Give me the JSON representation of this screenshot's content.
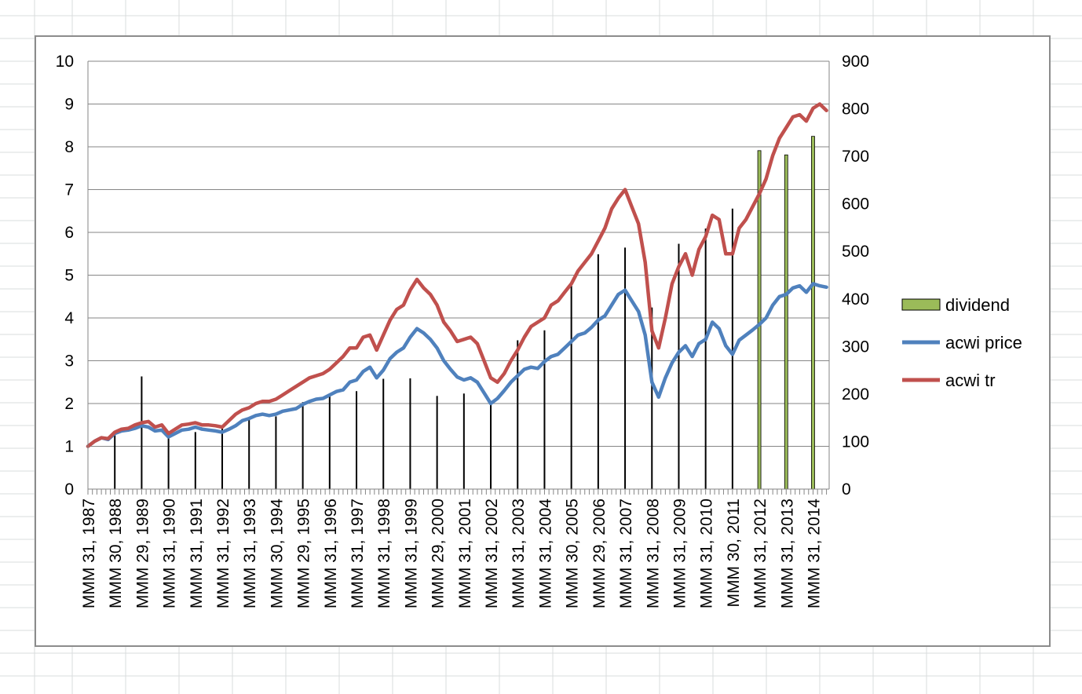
{
  "chart_data": {
    "type": "line",
    "x_categories": [
      "MMM 31, 1987",
      "MMM 30, 1988",
      "MMM 29, 1989",
      "MMM 31, 1990",
      "MMM 31, 1991",
      "MMM 31, 1992",
      "MMM 31, 1993",
      "MMM 30, 1994",
      "MMM 29, 1995",
      "MMM 31, 1996",
      "MMM 31, 1997",
      "MMM 31, 1998",
      "MMM 31, 1999",
      "MMM 29, 2000",
      "MMM 31, 2001",
      "MMM 31, 2002",
      "MMM 31, 2003",
      "MMM 31, 2004",
      "MMM 30, 2005",
      "MMM 29, 2006",
      "MMM 31, 2007",
      "MMM 31, 2008",
      "MMM 31, 2009",
      "MMM 31, 2010",
      "MMM 30, 2011",
      "MMM 31, 2012",
      "MMM 31, 2013",
      "MMM 31, 2014"
    ],
    "y_left": {
      "ylim": [
        0,
        10
      ],
      "ticks": [
        "0",
        "1",
        "2",
        "3",
        "4",
        "5",
        "6",
        "7",
        "8",
        "9",
        "10"
      ]
    },
    "y_right": {
      "ylim": [
        0,
        900
      ],
      "ticks": [
        "0",
        "100",
        "200",
        "300",
        "400",
        "500",
        "600",
        "700",
        "800",
        "900"
      ]
    },
    "grid": true,
    "legend_position": "right",
    "series": [
      {
        "name": "dividend",
        "kind": "bar",
        "axis": "right",
        "color": "#9bbb59",
        "x": [
          1988.0,
          1989.0,
          1990.0,
          1991.0,
          1992.0,
          1993.0,
          1994.0,
          1995.0,
          1996.0,
          1997.0,
          1998.0,
          1999.0,
          2000.0,
          2001.0,
          2002.0,
          2003.0,
          2004.0,
          2005.0,
          2006.0,
          2007.0,
          2008.0,
          2009.0,
          2010.0,
          2011.0,
          2012.0,
          2013.0,
          2014.0
        ],
        "values": [
          115,
          237,
          118,
          120,
          127,
          150,
          153,
          183,
          199,
          206,
          232,
          233,
          196,
          201,
          181,
          313,
          334,
          428,
          494,
          508,
          382,
          516,
          548,
          590,
          712,
          703,
          742
        ]
      },
      {
        "name": "acwi price",
        "kind": "line",
        "axis": "left",
        "color": "#4f81bd",
        "x": [
          1987.0,
          1987.25,
          1987.5,
          1987.75,
          1988.0,
          1988.25,
          1988.5,
          1988.75,
          1989.0,
          1989.25,
          1989.5,
          1989.75,
          1990.0,
          1990.25,
          1990.5,
          1990.75,
          1991.0,
          1991.25,
          1991.5,
          1991.75,
          1992.0,
          1992.25,
          1992.5,
          1992.75,
          1993.0,
          1993.25,
          1993.5,
          1993.75,
          1994.0,
          1994.25,
          1994.5,
          1994.75,
          1995.0,
          1995.25,
          1995.5,
          1995.75,
          1996.0,
          1996.25,
          1996.5,
          1996.75,
          1997.0,
          1997.25,
          1997.5,
          1997.75,
          1998.0,
          1998.25,
          1998.5,
          1998.75,
          1999.0,
          1999.25,
          1999.5,
          1999.75,
          2000.0,
          2000.25,
          2000.5,
          2000.75,
          2001.0,
          2001.25,
          2001.5,
          2001.75,
          2002.0,
          2002.25,
          2002.5,
          2002.75,
          2003.0,
          2003.25,
          2003.5,
          2003.75,
          2004.0,
          2004.25,
          2004.5,
          2004.75,
          2005.0,
          2005.25,
          2005.5,
          2005.75,
          2006.0,
          2006.25,
          2006.5,
          2006.75,
          2007.0,
          2007.25,
          2007.5,
          2007.75,
          2008.0,
          2008.25,
          2008.5,
          2008.75,
          2009.0,
          2009.25,
          2009.5,
          2009.75,
          2010.0,
          2010.25,
          2010.5,
          2010.75,
          2011.0,
          2011.25,
          2011.5,
          2011.75,
          2012.0,
          2012.25,
          2012.5,
          2012.75,
          2013.0,
          2013.25,
          2013.5,
          2013.75,
          2014.0,
          2014.25,
          2014.5
        ],
        "values": [
          1.0,
          1.12,
          1.2,
          1.16,
          1.3,
          1.36,
          1.38,
          1.42,
          1.48,
          1.45,
          1.36,
          1.38,
          1.22,
          1.3,
          1.38,
          1.4,
          1.45,
          1.4,
          1.38,
          1.36,
          1.33,
          1.4,
          1.48,
          1.6,
          1.65,
          1.72,
          1.75,
          1.72,
          1.75,
          1.82,
          1.85,
          1.88,
          1.98,
          2.05,
          2.1,
          2.12,
          2.2,
          2.28,
          2.32,
          2.5,
          2.55,
          2.75,
          2.85,
          2.6,
          2.78,
          3.05,
          3.2,
          3.3,
          3.55,
          3.75,
          3.65,
          3.5,
          3.3,
          3.0,
          2.8,
          2.62,
          2.55,
          2.6,
          2.5,
          2.25,
          2.0,
          2.12,
          2.3,
          2.5,
          2.65,
          2.8,
          2.85,
          2.82,
          2.98,
          3.1,
          3.15,
          3.3,
          3.45,
          3.6,
          3.65,
          3.78,
          3.95,
          4.05,
          4.3,
          4.55,
          4.65,
          4.4,
          4.15,
          3.6,
          2.5,
          2.15,
          2.6,
          2.95,
          3.2,
          3.35,
          3.1,
          3.4,
          3.5,
          3.9,
          3.75,
          3.35,
          3.15,
          3.48,
          3.6,
          3.72,
          3.85,
          4.0,
          4.3,
          4.5,
          4.55,
          4.7,
          4.75,
          4.6,
          4.8,
          4.75,
          4.72
        ]
      },
      {
        "name": "acwi tr",
        "kind": "line",
        "axis": "left",
        "color": "#c0504d",
        "x": [
          1987.0,
          1987.25,
          1987.5,
          1987.75,
          1988.0,
          1988.25,
          1988.5,
          1988.75,
          1989.0,
          1989.25,
          1989.5,
          1989.75,
          1990.0,
          1990.25,
          1990.5,
          1990.75,
          1991.0,
          1991.25,
          1991.5,
          1991.75,
          1992.0,
          1992.25,
          1992.5,
          1992.75,
          1993.0,
          1993.25,
          1993.5,
          1993.75,
          1994.0,
          1994.25,
          1994.5,
          1994.75,
          1995.0,
          1995.25,
          1995.5,
          1995.75,
          1996.0,
          1996.25,
          1996.5,
          1996.75,
          1997.0,
          1997.25,
          1997.5,
          1997.75,
          1998.0,
          1998.25,
          1998.5,
          1998.75,
          1999.0,
          1999.25,
          1999.5,
          1999.75,
          2000.0,
          2000.25,
          2000.5,
          2000.75,
          2001.0,
          2001.25,
          2001.5,
          2001.75,
          2002.0,
          2002.25,
          2002.5,
          2002.75,
          2003.0,
          2003.25,
          2003.5,
          2003.75,
          2004.0,
          2004.25,
          2004.5,
          2004.75,
          2005.0,
          2005.25,
          2005.5,
          2005.75,
          2006.0,
          2006.25,
          2006.5,
          2006.75,
          2007.0,
          2007.25,
          2007.5,
          2007.75,
          2008.0,
          2008.25,
          2008.5,
          2008.75,
          2009.0,
          2009.25,
          2009.5,
          2009.75,
          2010.0,
          2010.25,
          2010.5,
          2010.75,
          2011.0,
          2011.25,
          2011.5,
          2011.75,
          2012.0,
          2012.25,
          2012.5,
          2012.75,
          2013.0,
          2013.25,
          2013.5,
          2013.75,
          2014.0,
          2014.25,
          2014.5
        ],
        "values": [
          1.0,
          1.12,
          1.2,
          1.18,
          1.33,
          1.4,
          1.42,
          1.5,
          1.55,
          1.58,
          1.45,
          1.5,
          1.3,
          1.4,
          1.5,
          1.52,
          1.55,
          1.5,
          1.5,
          1.48,
          1.45,
          1.6,
          1.75,
          1.85,
          1.9,
          2.0,
          2.05,
          2.05,
          2.1,
          2.2,
          2.3,
          2.4,
          2.5,
          2.6,
          2.65,
          2.7,
          2.8,
          2.95,
          3.1,
          3.3,
          3.3,
          3.55,
          3.6,
          3.25,
          3.6,
          3.95,
          4.2,
          4.3,
          4.65,
          4.9,
          4.7,
          4.55,
          4.3,
          3.9,
          3.7,
          3.45,
          3.5,
          3.55,
          3.4,
          3.0,
          2.6,
          2.5,
          2.7,
          3.0,
          3.25,
          3.55,
          3.8,
          3.9,
          4.0,
          4.3,
          4.4,
          4.6,
          4.8,
          5.1,
          5.3,
          5.5,
          5.8,
          6.1,
          6.55,
          6.8,
          7.0,
          6.6,
          6.2,
          5.3,
          3.7,
          3.3,
          4.0,
          4.8,
          5.2,
          5.5,
          5.0,
          5.6,
          5.9,
          6.4,
          6.3,
          5.5,
          5.5,
          6.1,
          6.3,
          6.6,
          6.9,
          7.25,
          7.8,
          8.2,
          8.45,
          8.7,
          8.75,
          8.6,
          8.9,
          9.0,
          8.85
        ]
      }
    ]
  }
}
